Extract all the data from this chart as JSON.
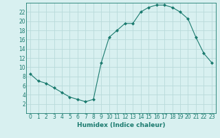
{
  "x": [
    0,
    1,
    2,
    3,
    4,
    5,
    6,
    7,
    8,
    9,
    10,
    11,
    12,
    13,
    14,
    15,
    16,
    17,
    18,
    19,
    20,
    21,
    22,
    23
  ],
  "y": [
    8.5,
    7.0,
    6.5,
    5.5,
    4.5,
    3.5,
    3.0,
    2.5,
    3.0,
    11.0,
    16.5,
    18.0,
    19.5,
    19.5,
    22.0,
    23.0,
    23.5,
    23.5,
    23.0,
    22.0,
    20.5,
    16.5,
    13.0,
    11.0
  ],
  "xlabel": "Humidex (Indice chaleur)",
  "ylim": [
    0,
    24
  ],
  "xlim": [
    -0.5,
    23.5
  ],
  "yticks": [
    2,
    4,
    6,
    8,
    10,
    12,
    14,
    16,
    18,
    20,
    22
  ],
  "xticks": [
    0,
    1,
    2,
    3,
    4,
    5,
    6,
    7,
    8,
    9,
    10,
    11,
    12,
    13,
    14,
    15,
    16,
    17,
    18,
    19,
    20,
    21,
    22,
    23
  ],
  "line_color": "#1a7a6e",
  "marker": "D",
  "marker_size": 2.0,
  "bg_color": "#d8f0f0",
  "grid_color": "#b8dada",
  "label_fontsize": 6.5,
  "tick_fontsize": 5.5
}
